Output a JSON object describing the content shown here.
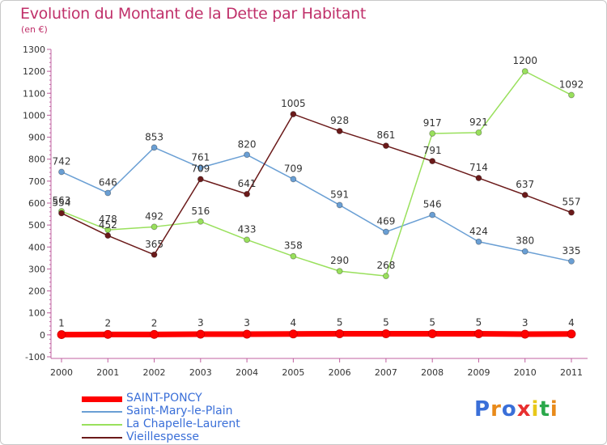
{
  "title": "Evolution du Montant de la Dette par Habitant",
  "unit_label": "(en €)",
  "chart_data": {
    "type": "line",
    "title": "Evolution du Montant de la Dette par Habitant",
    "ylabel": "(en €)",
    "xlabel": "",
    "x": [
      "2000",
      "2001",
      "2002",
      "2003",
      "2004",
      "2005",
      "2006",
      "2007",
      "2008",
      "2009",
      "2010",
      "2011"
    ],
    "ylim": [
      -100,
      1300
    ],
    "yticks": [
      -100,
      0,
      100,
      200,
      300,
      400,
      500,
      600,
      700,
      800,
      900,
      1000,
      1100,
      1200,
      1300
    ],
    "grid": false,
    "legend_placement": "bottom-left",
    "series": [
      {
        "name": "SAINT-PONCY",
        "color": "#ff0000",
        "values": [
          1,
          2,
          2,
          3,
          3,
          4,
          5,
          5,
          5,
          5,
          3,
          4
        ]
      },
      {
        "name": "Saint-Mary-le-Plain",
        "color": "#6a9fd4",
        "values": [
          742,
          646,
          853,
          761,
          820,
          709,
          591,
          469,
          546,
          424,
          380,
          335
        ]
      },
      {
        "name": "La Chapelle-Laurent",
        "color": "#99e05c",
        "values": [
          563,
          478,
          492,
          516,
          433,
          358,
          290,
          268,
          917,
          921,
          1200,
          1092
        ]
      },
      {
        "name": "Vieillespesse",
        "color": "#6b1a1a",
        "values": [
          554,
          452,
          365,
          709,
          641,
          1005,
          928,
          861,
          791,
          714,
          637,
          557
        ]
      }
    ]
  },
  "legend": [
    {
      "label": "SAINT-PONCY",
      "color": "#ff0000"
    },
    {
      "label": "Saint-Mary-le-Plain",
      "color": "#6a9fd4"
    },
    {
      "label": "La Chapelle-Laurent",
      "color": "#99e05c"
    },
    {
      "label": "Vieillespesse",
      "color": "#6b1a1a"
    }
  ],
  "logo": {
    "text": "Proxiti",
    "colors": [
      "#3a6fd8",
      "#e88a1a",
      "#3a6fd8",
      "#e83030",
      "#e8c81a",
      "#2aa84a",
      "#e88a1a"
    ]
  }
}
